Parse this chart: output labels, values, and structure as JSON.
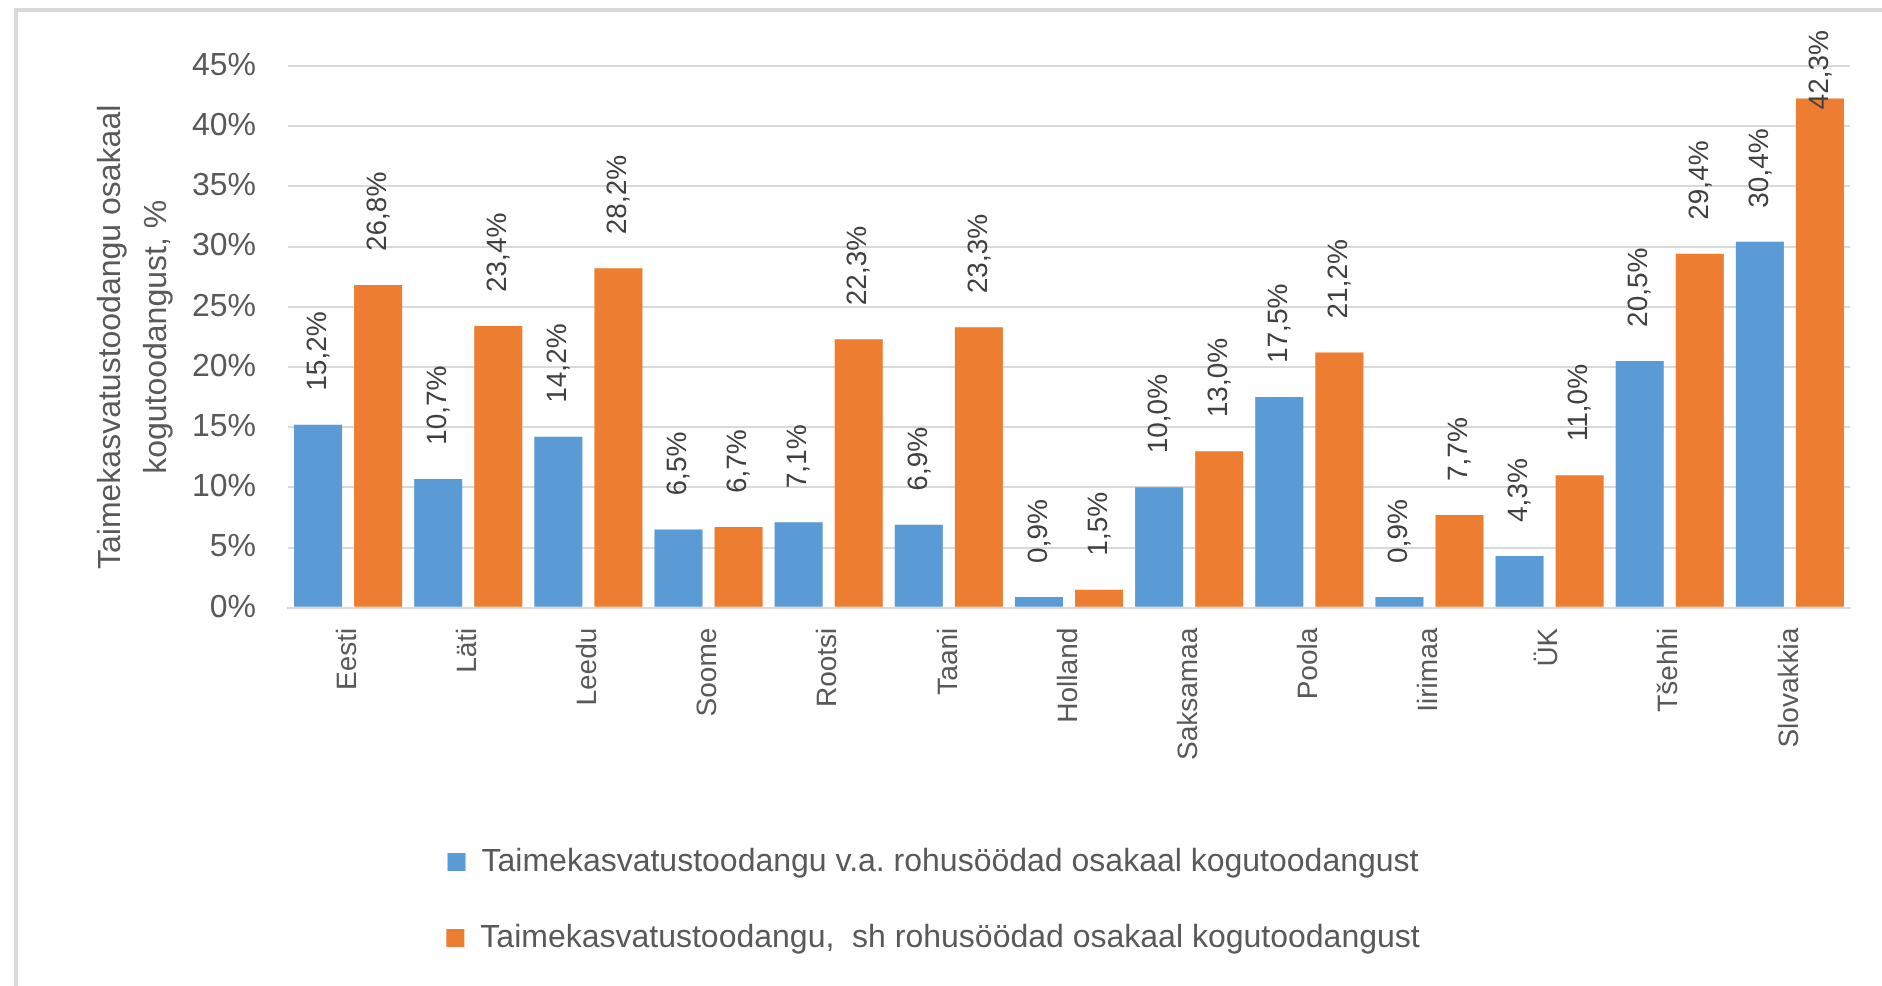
{
  "chart_data": {
    "type": "bar",
    "ylabel": "Taimekasvatustoodangu osakaal kogutoodangust, %",
    "categories": [
      "Eesti",
      "Läti",
      "Leedu",
      "Soome",
      "Rootsi",
      "Taani",
      "Holland",
      "Saksamaa",
      "Poola",
      "Iirimaa",
      "ÜK",
      "Tšehhi",
      "Slovakkia"
    ],
    "series": [
      {
        "name": "Taimekasvatustoodangu v.a. rohusöödad osakaal kogutoodangust",
        "color": "#5b9bd5",
        "values": [
          15.2,
          10.7,
          14.2,
          6.5,
          7.1,
          6.9,
          0.9,
          10.0,
          17.5,
          0.9,
          4.3,
          20.5,
          30.4
        ],
        "value_labels": [
          "15,2%",
          "10,7%",
          "14,2%",
          "6,5%",
          "7,1%",
          "6,9%",
          "0,9%",
          "10,0%",
          "17,5%",
          "0,9%",
          "4,3%",
          "20,5%",
          "30,4%"
        ]
      },
      {
        "name": "Taimekasvatustoodangu,  sh rohusöödad osakaal kogutoodangust",
        "color": "#ed7d31",
        "values": [
          26.8,
          23.4,
          28.2,
          6.7,
          22.3,
          23.3,
          1.5,
          13.0,
          21.2,
          7.7,
          11.0,
          29.4,
          42.3
        ],
        "value_labels": [
          "26,8%",
          "23,4%",
          "28,2%",
          "6,7%",
          "22,3%",
          "23,3%",
          "1,5%",
          "13,0%",
          "21,2%",
          "7,7%",
          "11,0%",
          "29,4%",
          "42,3%"
        ]
      }
    ],
    "ylim": [
      0,
      45
    ],
    "yticks": [
      {
        "value": 0,
        "label": "0%"
      },
      {
        "value": 5,
        "label": "5%"
      },
      {
        "value": 10,
        "label": "10%"
      },
      {
        "value": 15,
        "label": "15%"
      },
      {
        "value": 20,
        "label": "20%"
      },
      {
        "value": 25,
        "label": "25%"
      },
      {
        "value": 30,
        "label": "30%"
      },
      {
        "value": 35,
        "label": "35%"
      },
      {
        "value": 40,
        "label": "40%"
      },
      {
        "value": 45,
        "label": "45%"
      }
    ],
    "grid": "y",
    "legend": "bottom"
  }
}
